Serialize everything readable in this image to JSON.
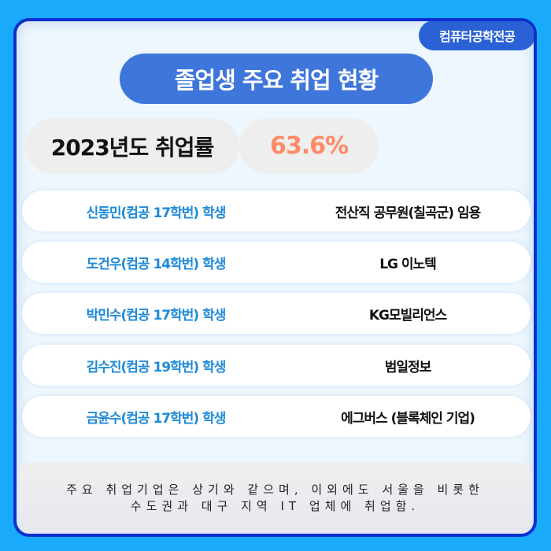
{
  "badge": "컴퓨터공학전공",
  "title": "졸업생 주요 취업 현황",
  "rate": {
    "label": "2023년도 취업률",
    "value": "63.6%"
  },
  "rows": [
    {
      "name": "신동민(컴공 17학번) 학생",
      "company": "전산직 공무원(칠곡군) 임용"
    },
    {
      "name": "도건우(컴공 14학번) 학생",
      "company": "LG 이노텍"
    },
    {
      "name": "박민수(컴공 17학번) 학생",
      "company": "KG모빌리언스"
    },
    {
      "name": "김수진(컴공 19학번) 학생",
      "company": "범일정보"
    },
    {
      "name": "금윤수(컴공 17학번) 학생",
      "company": "에그버스 (블록체인 기업)"
    }
  ],
  "footer": {
    "line1": "주요 취업기업은 상기와 같으며, 이외에도 서울을 비롯한",
    "line2": "수도권과 대구 지역 IT 업체에 취업함."
  },
  "colors": {
    "background": "#19aafc",
    "border": "#0a2fcf",
    "title_pill": "#3f76db",
    "name_text": "#1f8ad8",
    "rate_value": "#ff8a66"
  }
}
